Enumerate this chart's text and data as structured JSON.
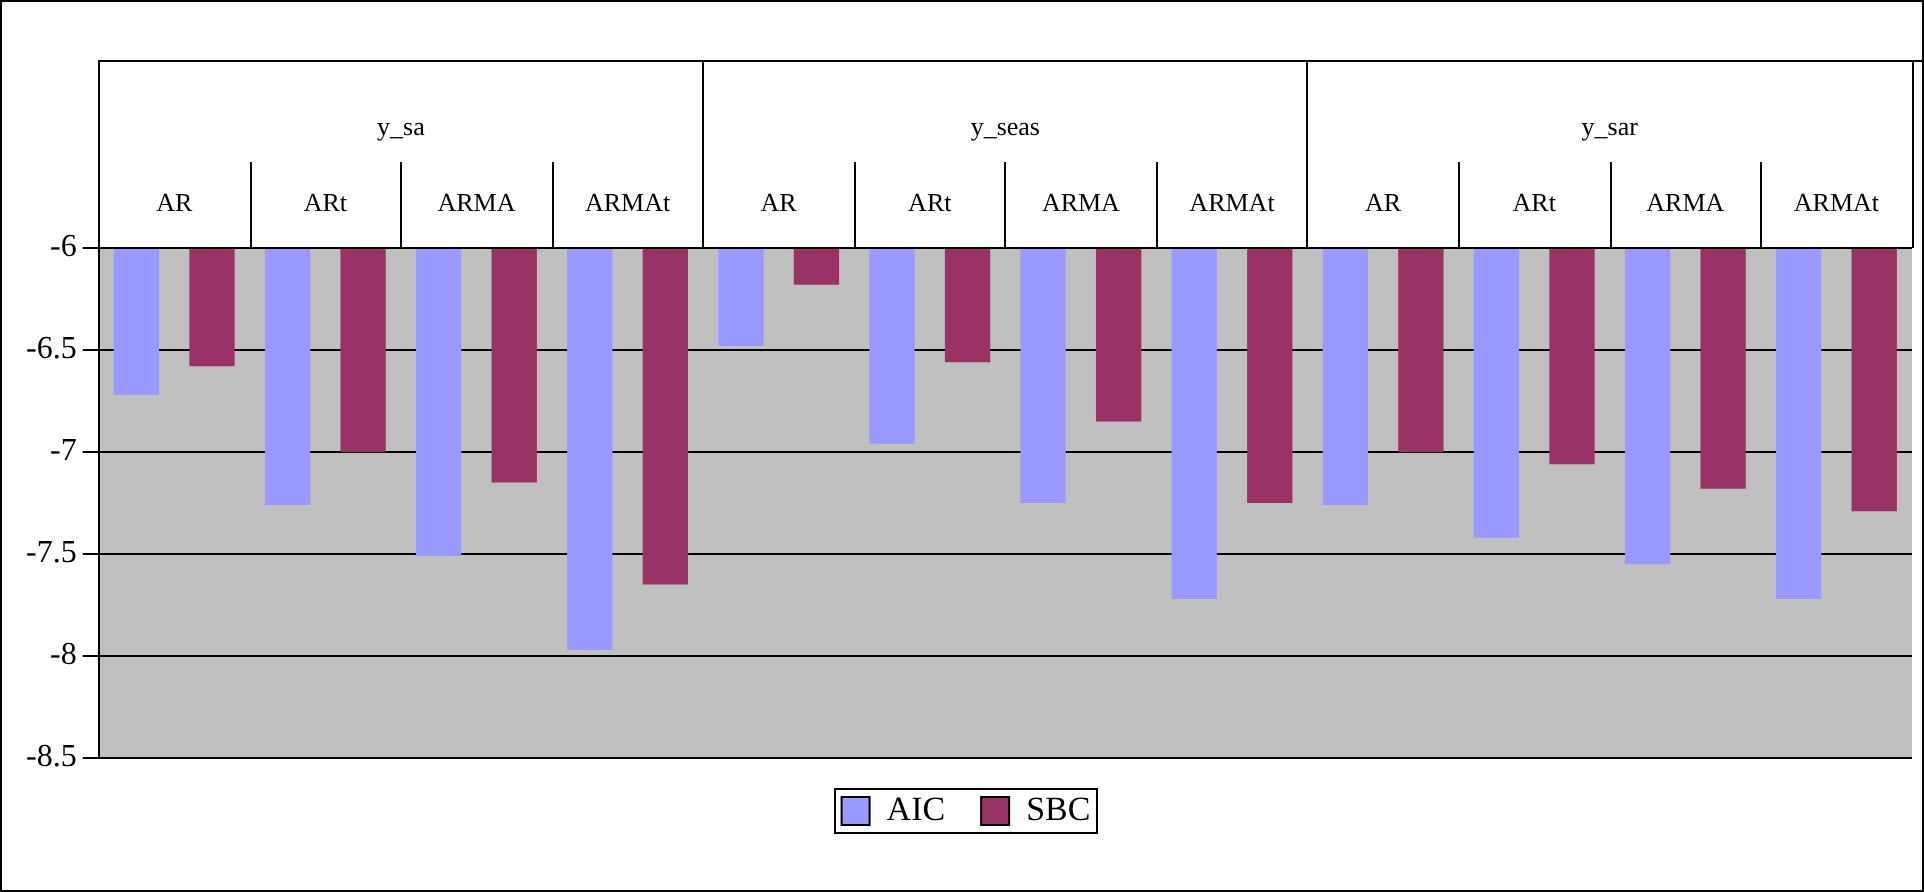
{
  "chart_data": {
    "type": "bar",
    "categories": [
      "AR",
      "ARt",
      "ARMA",
      "ARMAt",
      "AR",
      "ARt",
      "ARMA",
      "ARMAt",
      "AR",
      "ARt",
      "ARMA",
      "ARMAt"
    ],
    "annotations": [
      "y_sa",
      "y_seas",
      "y_sar"
    ],
    "series": [
      {
        "name": "AIC",
        "color": "#9999ff",
        "values": [
          -6.72,
          -7.26,
          -7.51,
          -7.97,
          -6.48,
          -6.96,
          -7.25,
          -7.72,
          -7.26,
          -7.42,
          -7.55,
          -7.72
        ]
      },
      {
        "name": "SBC",
        "color": "#993366",
        "values": [
          -6.58,
          -7.0,
          -7.15,
          -7.65,
          -6.18,
          -6.56,
          -6.85,
          -7.25,
          -7.0,
          -7.06,
          -7.18,
          -7.29
        ]
      }
    ],
    "ylim": [
      -8.5,
      -6
    ],
    "yticks": [
      -6,
      -6.5,
      -7,
      -7.5,
      -8,
      -8.5
    ],
    "grid": "y",
    "legend": "bottom"
  }
}
